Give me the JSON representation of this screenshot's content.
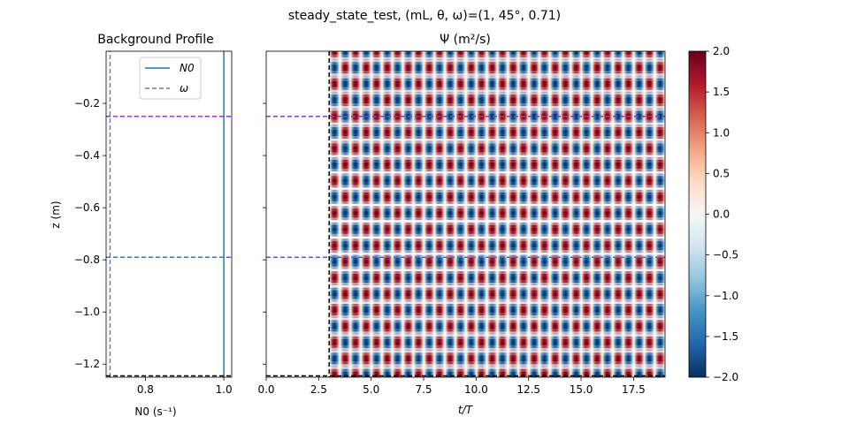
{
  "figure": {
    "suptitle": "steady_state_test, (mL, θ, ω)=(1, 45°, 0.71)"
  },
  "left_panel": {
    "title": "Background Profile",
    "xlabel": "N0 (s⁻¹)",
    "ylabel": "z (m)",
    "legend": [
      "N0",
      "ω"
    ]
  },
  "right_panel": {
    "title": "Ψ (m²/s)",
    "xlabel": "t/T"
  },
  "colorbar": {
    "colormap": "RdBu_r",
    "ticks": [
      "2.0",
      "1.5",
      "1.0",
      "0.5",
      "0.0",
      "−0.5",
      "−1.0",
      "−1.5",
      "−2.0"
    ]
  },
  "chart_data": [
    {
      "type": "line",
      "title": "Background Profile",
      "xlabel": "N0 (s⁻¹)",
      "ylabel": "z (m)",
      "xlim": [
        0.7,
        1.02
      ],
      "ylim": [
        -1.25,
        0.0
      ],
      "xticks": [
        0.8,
        1.0
      ],
      "xtick_labels": [
        "0.8",
        "1.0"
      ],
      "yticks": [
        -0.2,
        -0.4,
        -0.6,
        -0.8,
        -1.0,
        -1.2
      ],
      "ytick_labels": [
        "−0.2",
        "−0.4",
        "−0.6",
        "−0.8",
        "−1.0",
        "−1.2"
      ],
      "series": [
        {
          "name": "N0",
          "style": "solid",
          "color": "#1f77b4",
          "x": [
            1.0,
            1.0
          ],
          "z": [
            -1.25,
            0.0
          ]
        },
        {
          "name": "ω",
          "style": "dashed",
          "color": "#708090",
          "x": [
            0.71,
            0.71
          ],
          "z": [
            -1.25,
            0.0
          ]
        }
      ],
      "hlines": [
        {
          "z": -0.25,
          "color": "#9932cc",
          "style": "dashed"
        },
        {
          "z": -0.79,
          "color": "#4169e1",
          "style": "dashed"
        },
        {
          "z": -1.245,
          "color": "#000000",
          "style": "dashed"
        }
      ],
      "legend_position": "top-right"
    },
    {
      "type": "heatmap",
      "title": "Ψ (m²/s)",
      "xlabel": "t/T",
      "xlim": [
        0.0,
        19.0
      ],
      "ylim": [
        -1.25,
        0.0
      ],
      "xticks": [
        0.0,
        2.5,
        5.0,
        7.5,
        10.0,
        12.5,
        15.0,
        17.5
      ],
      "xtick_labels": [
        "0.0",
        "2.5",
        "5.0",
        "7.5",
        "10.0",
        "12.5",
        "15.0",
        "17.5"
      ],
      "yticks": [
        -0.2,
        -0.4,
        -0.6,
        -0.8,
        -1.0,
        -1.2
      ],
      "field": {
        "description_expr": "2*sin(2π(z/λz) − 2π t)",
        "t_start": 3.0,
        "t_period": 1.0,
        "z_wavelength": 0.124,
        "amplitude": 2.0
      },
      "vlines": [
        {
          "x": 3.0,
          "color": "#000000",
          "style": "dashed"
        }
      ],
      "hlines": [
        {
          "z": -0.25,
          "color": "#9932cc",
          "style": "dashed"
        },
        {
          "z": -0.79,
          "color": "#4169e1",
          "style": "dashed"
        },
        {
          "z": -1.245,
          "color": "#000000",
          "style": "dashed"
        }
      ],
      "colorbar": {
        "vmin": -2.0,
        "vmax": 2.0,
        "ticks": [
          2.0,
          1.5,
          1.0,
          0.5,
          0.0,
          -0.5,
          -1.0,
          -1.5,
          -2.0
        ]
      }
    }
  ]
}
